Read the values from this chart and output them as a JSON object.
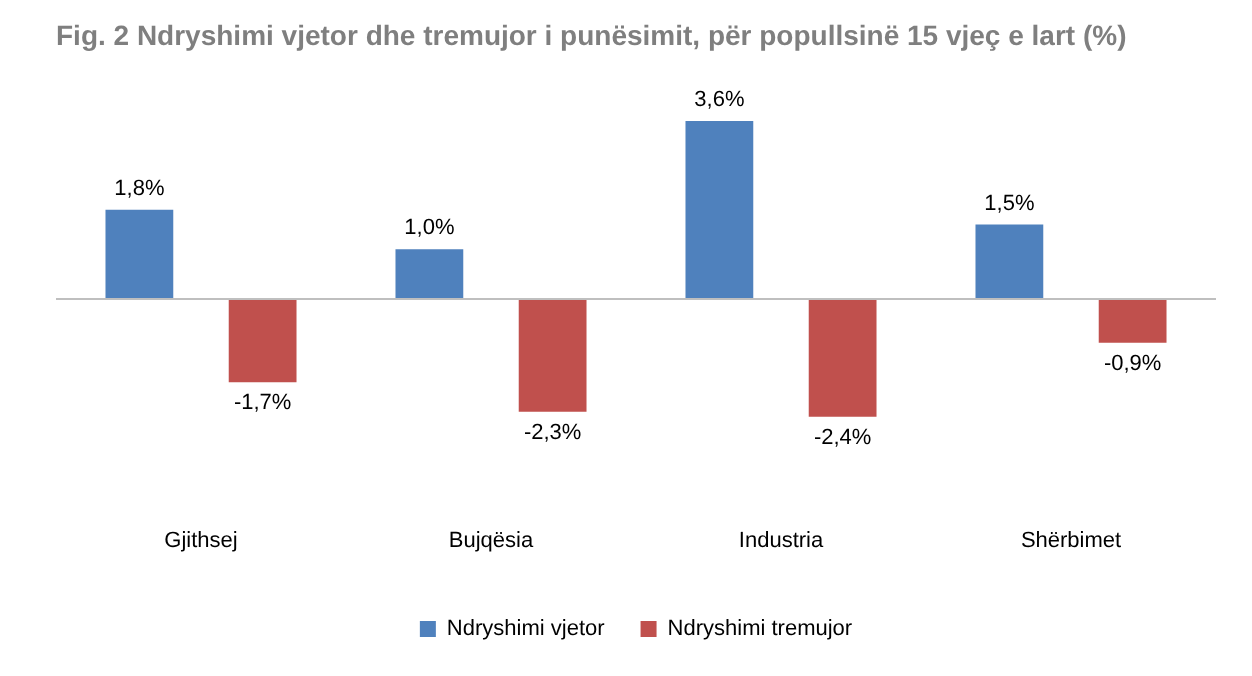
{
  "chart_data": {
    "type": "bar",
    "title": "Fig. 2 Ndryshimi vjetor dhe tremujor i punësimit, për popullsinë 15 vjeç e lart (%)",
    "tick_labels": "x",
    "categories": [
      "Gjithsej",
      "Bujqësia",
      "Industria",
      "Shërbimet"
    ],
    "series": [
      {
        "name": "Ndryshimi vjetor",
        "color": "#4f81bd",
        "values": [
          1.8,
          1.0,
          3.6,
          1.5
        ],
        "value_labels": [
          "1,8%",
          "1,0%",
          "3,6%",
          "1,5%"
        ]
      },
      {
        "name": "Ndryshimi tremujor",
        "color": "#c0504d",
        "values": [
          -1.7,
          -2.3,
          -2.4,
          -0.9
        ],
        "value_labels": [
          "-1,7%",
          "-2,3%",
          "-2,4%",
          "-0,9%"
        ]
      }
    ],
    "legend": "bottom",
    "grid": false
  }
}
